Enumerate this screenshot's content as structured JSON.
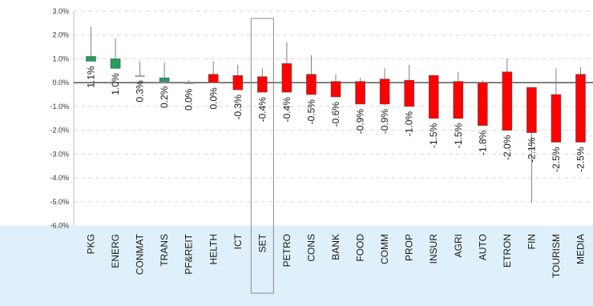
{
  "chart_data": {
    "type": "candlestick",
    "title": "",
    "xlabel": "",
    "ylabel": "",
    "ylim": [
      -6.0,
      3.0
    ],
    "ytick_step": 1.0,
    "ytick_labels": [
      "3.0%",
      "2.0%",
      "1.0%",
      "0.0%",
      "-1.0%",
      "-2.0%",
      "-3.0%",
      "-4.0%",
      "-5.0%",
      "-6.0%"
    ],
    "grid": "horizontal-dashed",
    "highlighted_category": "SET",
    "colors": {
      "up": "#22a05a",
      "down": "#ff0000",
      "neutral": "#888888",
      "axis_band": "#dff0fa"
    },
    "categories": [
      "PKG",
      "ENERG",
      "CONMAT",
      "TRANS",
      "PF&REIT",
      "HELTH",
      "ICT",
      "SET",
      "PETRO",
      "CONS",
      "BANK",
      "FOOD",
      "COMM",
      "PROP",
      "INSUR",
      "AGRI",
      "AUTO",
      "ETRON",
      "FIN",
      "TOURISM",
      "MEDIA"
    ],
    "labels": [
      "1.1%",
      "1.0%",
      "0.3%",
      "0.2%",
      "0.0%",
      "0.0%",
      "-0.3%",
      "-0.4%",
      "-0.4%",
      "-0.5%",
      "-0.6%",
      "-0.9%",
      "-0.9%",
      "-1.0%",
      "-1.5%",
      "-1.5%",
      "-1.8%",
      "-2.0%",
      "-2.1%",
      "-2.5%",
      "-2.5%"
    ],
    "values": [
      1.1,
      1.0,
      0.3,
      0.2,
      0.0,
      0.0,
      -0.3,
      -0.4,
      -0.4,
      -0.5,
      -0.6,
      -0.9,
      -0.9,
      -1.0,
      -1.5,
      -1.5,
      -1.8,
      -2.0,
      -2.1,
      -2.5,
      -2.5
    ],
    "open": [
      0.9,
      0.6,
      0.3,
      0.05,
      -0.05,
      0.35,
      0.3,
      0.25,
      0.8,
      0.35,
      0.05,
      0.05,
      0.15,
      0.1,
      0.3,
      0.05,
      0.0,
      0.45,
      -0.2,
      -0.5,
      0.35
    ],
    "close": [
      1.1,
      1.0,
      0.3,
      0.2,
      0.0,
      0.0,
      -0.3,
      -0.4,
      -0.4,
      -0.5,
      -0.6,
      -0.9,
      -0.9,
      -1.0,
      -1.5,
      -1.5,
      -1.8,
      -2.0,
      -2.1,
      -2.5,
      -2.5
    ],
    "high": [
      2.35,
      1.85,
      0.9,
      0.85,
      0.1,
      0.9,
      0.75,
      0.6,
      1.7,
      1.15,
      0.35,
      0.2,
      0.6,
      0.75,
      0.35,
      0.45,
      0.1,
      1.0,
      -0.2,
      0.6,
      0.65
    ],
    "low": [
      0.9,
      0.6,
      0.25,
      0.05,
      -0.05,
      0.0,
      -0.3,
      -0.4,
      -0.4,
      -0.5,
      -0.6,
      -0.9,
      -0.95,
      -1.0,
      -1.5,
      -1.5,
      -1.8,
      -2.0,
      -5.05,
      -2.5,
      -2.5
    ]
  }
}
